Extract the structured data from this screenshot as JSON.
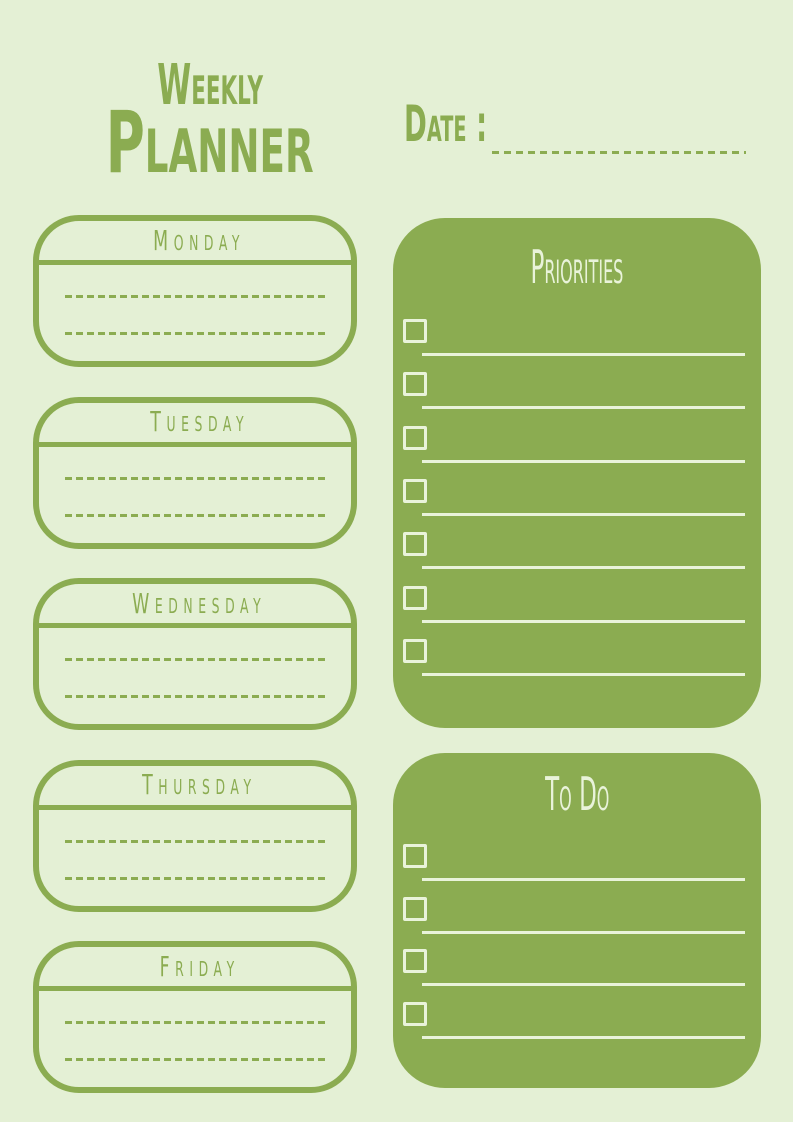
{
  "colors": {
    "background": "#e4f0d5",
    "green": "#8bac51",
    "cream": "#e9f3da"
  },
  "header": {
    "title_line1": "Weekly",
    "title_line2": "Planner"
  },
  "date": {
    "label": "Date :",
    "value": ""
  },
  "week": {
    "days": [
      {
        "label": "Monday",
        "entries": [
          "",
          ""
        ]
      },
      {
        "label": "Tuesday",
        "entries": [
          "",
          ""
        ]
      },
      {
        "label": "Wednesday",
        "entries": [
          "",
          ""
        ]
      },
      {
        "label": "Thursday",
        "entries": [
          "",
          ""
        ]
      },
      {
        "label": "Friday",
        "entries": [
          "",
          ""
        ]
      }
    ]
  },
  "priorities": {
    "title": "Priorities",
    "items": [
      {
        "checked": false,
        "text": ""
      },
      {
        "checked": false,
        "text": ""
      },
      {
        "checked": false,
        "text": ""
      },
      {
        "checked": false,
        "text": ""
      },
      {
        "checked": false,
        "text": ""
      },
      {
        "checked": false,
        "text": ""
      },
      {
        "checked": false,
        "text": ""
      }
    ]
  },
  "todo": {
    "title": "To Do",
    "items": [
      {
        "checked": false,
        "text": ""
      },
      {
        "checked": false,
        "text": ""
      },
      {
        "checked": false,
        "text": ""
      },
      {
        "checked": false,
        "text": ""
      }
    ]
  }
}
